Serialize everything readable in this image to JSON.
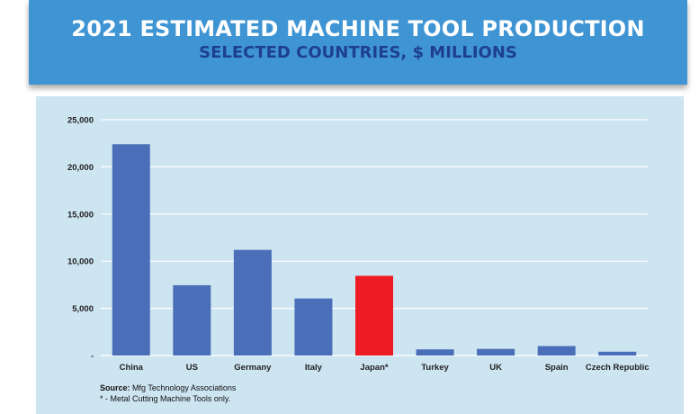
{
  "banner": {
    "title": "2021 ESTIMATED MACHINE TOOL PRODUCTION",
    "subtitle": "SELECTED COUNTRIES, $ MILLIONS"
  },
  "colors": {
    "banner": "#3f95d3",
    "panel": "#cde4f1",
    "bar": "#4a6fb8",
    "highlight": "#ed1c24"
  },
  "chart_data": {
    "type": "bar",
    "title": "2021 ESTIMATED MACHINE TOOL PRODUCTION",
    "subtitle": "SELECTED COUNTRIES, $ MILLIONS",
    "xlabel": "",
    "ylabel": "",
    "ylim": [
      0,
      25000
    ],
    "y_ticks": [
      0,
      5000,
      10000,
      15000,
      20000,
      25000
    ],
    "y_tick_labels": [
      "-",
      "5,000",
      "10,000",
      "15,000",
      "20,000",
      "25,000"
    ],
    "grid": true,
    "categories": [
      "China",
      "US",
      "Germany",
      "Italy",
      "Japan*",
      "Turkey",
      "UK",
      "Spain",
      "Czech Republic"
    ],
    "values": [
      22400,
      7450,
      11200,
      6050,
      8450,
      650,
      700,
      1000,
      400
    ],
    "highlight_index": 4
  },
  "footer": {
    "source_label": "Source:",
    "source_text": " Mfg Technology Associations",
    "note": "* - Metal Cutting Machine Tools only."
  }
}
